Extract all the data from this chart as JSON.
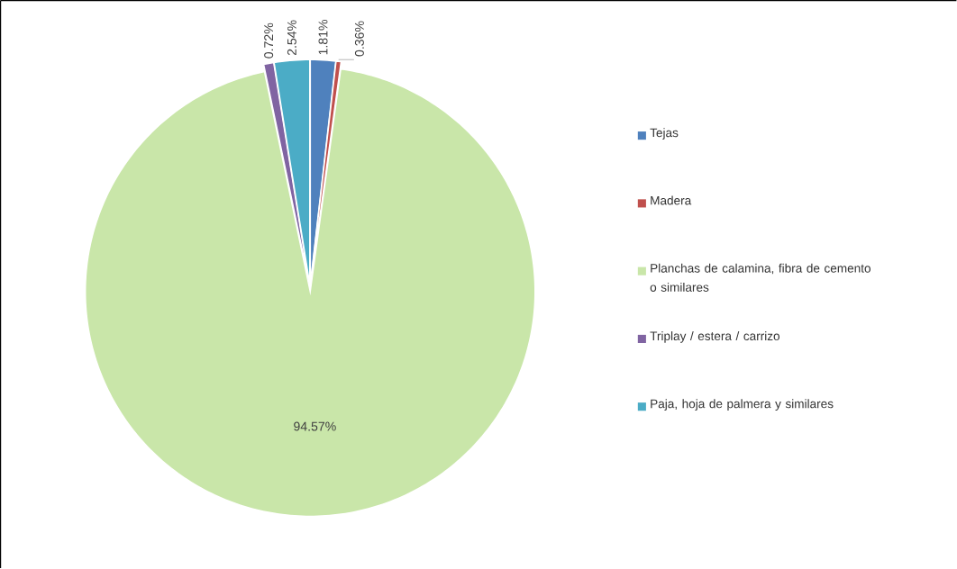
{
  "chart_data": {
    "type": "pie",
    "categories": [
      "Tejas",
      "Madera",
      "Planchas de calamina, fibra de cemento o similares",
      "Triplay / estera / carrizo",
      "Paja, hoja de palmera y similares"
    ],
    "values": [
      1.81,
      0.36,
      94.57,
      0.72,
      2.54
    ],
    "colors": [
      "#4f81bd",
      "#c0504d",
      "#c9e6a9",
      "#8064a2",
      "#4bacc6"
    ],
    "value_labels": [
      "1.81%",
      "0.36%",
      "94.57%",
      "0.72%",
      "2.54%"
    ],
    "legend": "right"
  }
}
